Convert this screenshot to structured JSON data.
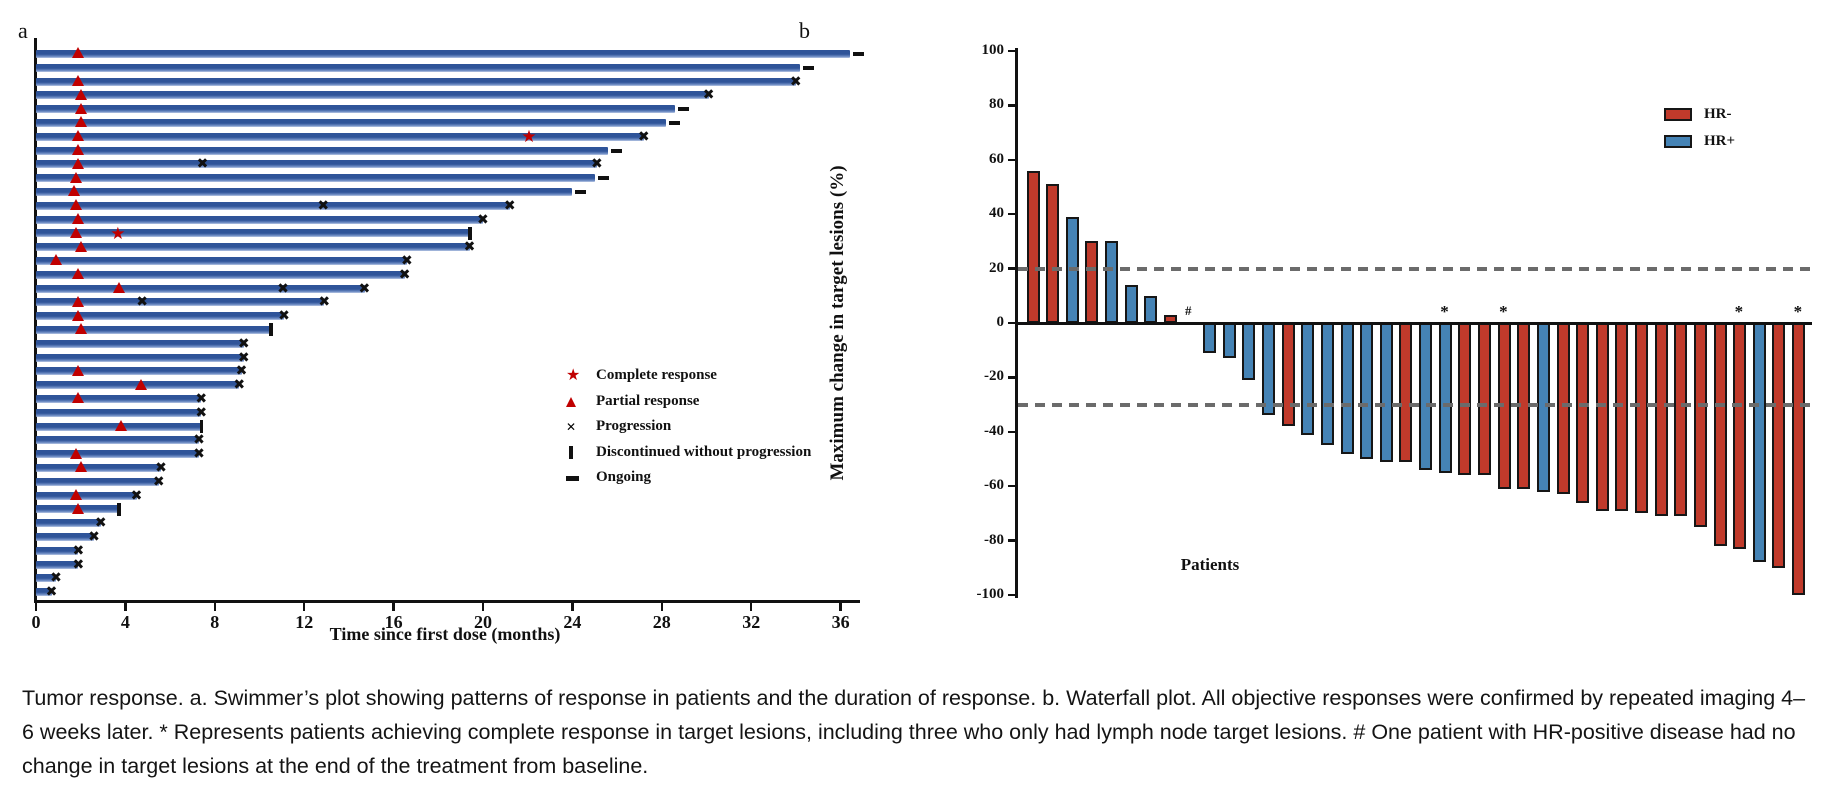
{
  "figure": {
    "panel_a_label": "a",
    "panel_b_label": "b",
    "caption": "Tumor response. a. Swimmer’s plot showing patterns of response in patients and the duration of response. b. Waterfall plot. All objective responses were confirmed by repeated imaging 4–6 weeks later. * Represents patients achieving complete response in target lesions, including three who only had lymph node target lesions. # One patient with HR-positive disease had no change in target lesions at the end of the treatment from baseline."
  },
  "chart_data": [
    {
      "id": "swimmer",
      "type": "bar",
      "orientation": "horizontal",
      "xlabel": "Time since first dose (months)",
      "xlim": [
        0,
        38
      ],
      "xticks": [
        0,
        4,
        8,
        12,
        16,
        20,
        24,
        28,
        32,
        36
      ],
      "bar_color": "#2f5499",
      "marker_red": "#c00000",
      "marker_black": "#111111",
      "legend": [
        {
          "symbol": "star",
          "label": "Complete response"
        },
        {
          "symbol": "triangle",
          "label": "Partial response"
        },
        {
          "symbol": "x",
          "label": "Progression"
        },
        {
          "symbol": "vbar",
          "label": "Discontinued without progression"
        },
        {
          "symbol": "dash",
          "label": "Ongoing"
        }
      ],
      "patients": [
        {
          "duration": 36.4,
          "end": "ongoing",
          "pr": 1.9
        },
        {
          "duration": 34.2,
          "end": "ongoing"
        },
        {
          "duration": 34.0,
          "end": "progression",
          "pr": 1.9
        },
        {
          "duration": 30.1,
          "end": "progression",
          "pr": 2.0
        },
        {
          "duration": 28.6,
          "end": "ongoing",
          "pr": 2.0
        },
        {
          "duration": 28.2,
          "end": "ongoing",
          "pr": 2.0
        },
        {
          "duration": 27.2,
          "end": "progression",
          "pr": 1.9,
          "cr": 22.1
        },
        {
          "duration": 25.6,
          "end": "ongoing",
          "pr": 1.9
        },
        {
          "duration": 25.1,
          "end": "progression",
          "pr": 1.9,
          "mid": [
            7.5
          ]
        },
        {
          "duration": 25.0,
          "end": "ongoing",
          "pr": 1.8
        },
        {
          "duration": 24.0,
          "end": "ongoing",
          "pr": 1.7
        },
        {
          "duration": 21.2,
          "end": "progression",
          "pr": 1.8,
          "mid": [
            12.9
          ]
        },
        {
          "duration": 20.0,
          "end": "progression",
          "pr": 1.9
        },
        {
          "duration": 19.4,
          "end": "discontinued",
          "pr": 1.8,
          "cr": 3.7
        },
        {
          "duration": 19.4,
          "end": "progression",
          "pr": 2.0
        },
        {
          "duration": 16.6,
          "end": "progression",
          "pr": 0.9
        },
        {
          "duration": 16.5,
          "end": "progression",
          "pr": 1.9
        },
        {
          "duration": 14.7,
          "end": "progression",
          "pr": 3.7,
          "mid": [
            11.1
          ]
        },
        {
          "duration": 12.9,
          "end": "progression",
          "pr": 1.9,
          "mid": [
            4.8
          ]
        },
        {
          "duration": 11.1,
          "end": "progression",
          "pr": 1.9
        },
        {
          "duration": 10.5,
          "end": "discontinued",
          "pr": 2.0
        },
        {
          "duration": 9.3,
          "end": "progression"
        },
        {
          "duration": 9.3,
          "end": "progression"
        },
        {
          "duration": 9.2,
          "end": "progression",
          "pr": 1.9
        },
        {
          "duration": 9.1,
          "end": "progression",
          "pr": 4.7
        },
        {
          "duration": 7.4,
          "end": "progression",
          "pr": 1.9
        },
        {
          "duration": 7.4,
          "end": "progression"
        },
        {
          "duration": 7.4,
          "end": "discontinued",
          "pr": 3.8
        },
        {
          "duration": 7.3,
          "end": "progression"
        },
        {
          "duration": 7.3,
          "end": "progression",
          "pr": 1.8
        },
        {
          "duration": 5.6,
          "end": "progression",
          "pr": 2.0
        },
        {
          "duration": 5.5,
          "end": "progression"
        },
        {
          "duration": 4.5,
          "end": "progression",
          "pr": 1.8
        },
        {
          "duration": 3.7,
          "end": "discontinued",
          "pr": 1.9
        },
        {
          "duration": 2.9,
          "end": "progression"
        },
        {
          "duration": 2.6,
          "end": "progression"
        },
        {
          "duration": 1.9,
          "end": "progression"
        },
        {
          "duration": 1.9,
          "end": "progression"
        },
        {
          "duration": 0.9,
          "end": "progression"
        },
        {
          "duration": 0.7,
          "end": "progression"
        }
      ]
    },
    {
      "id": "waterfall",
      "type": "bar",
      "ylabel": "Maximum change in target lesions (%)",
      "xlabel": "Patients",
      "ylim": [
        -100,
        100
      ],
      "yticks": [
        100,
        80,
        60,
        40,
        20,
        0,
        -20,
        -40,
        -60,
        -80,
        -100
      ],
      "reference_lines": [
        20,
        -30
      ],
      "legend": [
        {
          "label": "HR-",
          "color": "#c03a2b"
        },
        {
          "label": "HR+",
          "color": "#4583b5"
        }
      ],
      "colors": {
        "HR-": "#c03a2b",
        "HR+": "#4583b5"
      },
      "patients": [
        {
          "value": 56,
          "group": "HR-"
        },
        {
          "value": 51,
          "group": "HR-"
        },
        {
          "value": 39,
          "group": "HR+"
        },
        {
          "value": 30,
          "group": "HR-"
        },
        {
          "value": 30,
          "group": "HR+"
        },
        {
          "value": 14,
          "group": "HR+"
        },
        {
          "value": 10,
          "group": "HR+"
        },
        {
          "value": 3,
          "group": "HR-"
        },
        {
          "value": 0,
          "group": "HR+",
          "annotation": "#"
        },
        {
          "value": -11,
          "group": "HR+"
        },
        {
          "value": -13,
          "group": "HR+"
        },
        {
          "value": -21,
          "group": "HR+"
        },
        {
          "value": -34,
          "group": "HR+"
        },
        {
          "value": -38,
          "group": "HR-"
        },
        {
          "value": -41,
          "group": "HR+"
        },
        {
          "value": -45,
          "group": "HR+"
        },
        {
          "value": -48,
          "group": "HR+"
        },
        {
          "value": -50,
          "group": "HR+"
        },
        {
          "value": -51,
          "group": "HR+"
        },
        {
          "value": -51,
          "group": "HR-"
        },
        {
          "value": -54,
          "group": "HR+"
        },
        {
          "value": -55,
          "group": "HR+",
          "annotation": "*"
        },
        {
          "value": -56,
          "group": "HR-"
        },
        {
          "value": -56,
          "group": "HR-"
        },
        {
          "value": -61,
          "group": "HR-",
          "annotation": "*"
        },
        {
          "value": -61,
          "group": "HR-"
        },
        {
          "value": -62,
          "group": "HR+"
        },
        {
          "value": -63,
          "group": "HR-"
        },
        {
          "value": -66,
          "group": "HR-"
        },
        {
          "value": -69,
          "group": "HR-"
        },
        {
          "value": -69,
          "group": "HR-"
        },
        {
          "value": -70,
          "group": "HR-"
        },
        {
          "value": -71,
          "group": "HR-"
        },
        {
          "value": -71,
          "group": "HR-"
        },
        {
          "value": -75,
          "group": "HR-"
        },
        {
          "value": -82,
          "group": "HR-"
        },
        {
          "value": -83,
          "group": "HR-",
          "annotation": "*"
        },
        {
          "value": -88,
          "group": "HR+"
        },
        {
          "value": -90,
          "group": "HR-"
        },
        {
          "value": -100,
          "group": "HR-",
          "annotation": "*"
        }
      ]
    }
  ]
}
